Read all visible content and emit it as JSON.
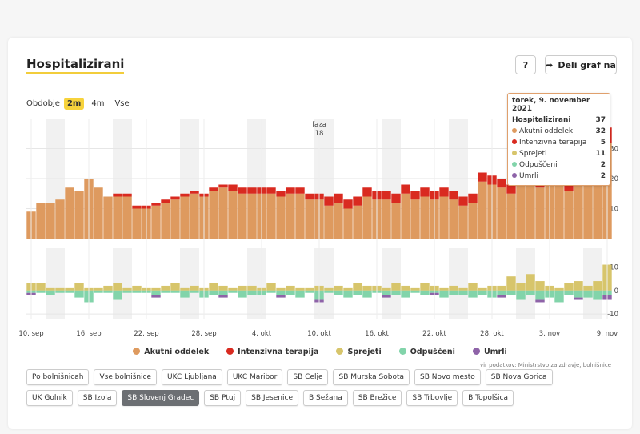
{
  "header": {
    "title": "Hospitalizirani",
    "help": "?",
    "share": "Deli graf na"
  },
  "period": {
    "label": "Obdobje",
    "options": [
      "2m",
      "4m",
      "Vse"
    ]
  },
  "chart_data": [
    {
      "type": "stacked-bar",
      "categories": [
        "10. sep",
        null,
        null,
        null,
        null,
        null,
        "16. sep",
        null,
        null,
        null,
        null,
        null,
        "22. sep",
        null,
        null,
        null,
        null,
        null,
        "28. sep",
        null,
        null,
        null,
        null,
        null,
        "4. okt",
        null,
        null,
        null,
        null,
        null,
        "10. okt",
        null,
        null,
        null,
        null,
        null,
        "16. okt",
        null,
        null,
        null,
        null,
        null,
        "22. okt",
        null,
        null,
        null,
        null,
        null,
        "28. okt",
        null,
        null,
        null,
        null,
        null,
        "3. nov",
        null,
        null,
        null,
        null,
        null,
        "9. nov"
      ],
      "series": [
        {
          "name": "Akutni oddelek",
          "color": "#de9a5f",
          "values": [
            9,
            12,
            12,
            13,
            17,
            16,
            20,
            17,
            14,
            14,
            14,
            10,
            10,
            11,
            12,
            13,
            14,
            15,
            14,
            16,
            17,
            16,
            15,
            15,
            15,
            15,
            14,
            15,
            15,
            13,
            13,
            11,
            12,
            10,
            11,
            14,
            13,
            13,
            12,
            15,
            13,
            14,
            13,
            14,
            13,
            11,
            12,
            19,
            18,
            17,
            15,
            18,
            18,
            17,
            19,
            18,
            16,
            18,
            21,
            23,
            32
          ]
        },
        {
          "name": "Intenzivna terapija",
          "color": "#d92a20",
          "values": [
            0,
            0,
            0,
            0,
            0,
            0,
            0,
            0,
            0,
            1,
            1,
            1,
            1,
            1,
            1,
            1,
            1,
            1,
            1,
            1,
            1,
            2,
            2,
            2,
            2,
            2,
            2,
            2,
            2,
            2,
            2,
            3,
            3,
            3,
            3,
            3,
            3,
            3,
            3,
            3,
            3,
            3,
            3,
            3,
            3,
            3,
            3,
            3,
            3,
            3,
            3,
            4,
            4,
            4,
            4,
            4,
            4,
            4,
            4,
            4,
            5
          ]
        }
      ],
      "ylim": [
        0,
        40
      ],
      "yticks": [
        10,
        20,
        30
      ],
      "grid": true,
      "annotations": [
        {
          "text": "faza",
          "value": "18",
          "x": "10. okt"
        }
      ]
    },
    {
      "type": "diverging-bar",
      "series": [
        {
          "name": "Sprejeti",
          "color": "#d7c56b",
          "values": [
            3,
            3,
            1,
            1,
            1,
            3,
            1,
            1,
            2,
            3,
            1,
            2,
            1,
            1,
            2,
            3,
            1,
            2,
            1,
            3,
            2,
            1,
            2,
            2,
            1,
            3,
            1,
            2,
            1,
            1,
            2,
            1,
            2,
            1,
            3,
            2,
            2,
            1,
            3,
            2,
            1,
            3,
            2,
            1,
            2,
            1,
            3,
            1,
            2,
            2,
            6,
            3,
            7,
            4,
            2,
            1,
            3,
            4,
            2,
            4,
            11
          ]
        },
        {
          "name": "Odpuščeni",
          "color": "#82d4aa",
          "values": [
            -1,
            -1,
            -2,
            -1,
            -1,
            -3,
            -5,
            -1,
            -1,
            -4,
            -1,
            -1,
            -1,
            -2,
            -1,
            -1,
            -3,
            -1,
            -3,
            -2,
            -2,
            -1,
            -3,
            -2,
            -2,
            -1,
            -2,
            -2,
            -3,
            -1,
            -4,
            -1,
            -2,
            -3,
            -2,
            -3,
            -1,
            -2,
            -2,
            -3,
            -1,
            -2,
            -1,
            -3,
            -2,
            -2,
            -3,
            -2,
            -3,
            -2,
            -2,
            -4,
            -2,
            -4,
            -3,
            -5,
            -2,
            -3,
            -3,
            -4,
            -2
          ]
        },
        {
          "name": "Umrli",
          "color": "#8e63a8",
          "values": [
            -1,
            0,
            0,
            0,
            0,
            0,
            0,
            0,
            0,
            0,
            0,
            0,
            0,
            -1,
            0,
            0,
            0,
            0,
            0,
            0,
            -1,
            0,
            0,
            0,
            0,
            0,
            -1,
            0,
            0,
            0,
            -1,
            0,
            0,
            0,
            0,
            0,
            0,
            -1,
            0,
            0,
            0,
            0,
            -1,
            0,
            0,
            0,
            0,
            0,
            0,
            -1,
            0,
            0,
            0,
            -1,
            0,
            0,
            0,
            -1,
            0,
            0,
            -2
          ]
        }
      ],
      "ylim": [
        -12,
        18
      ],
      "yticks": [
        -10,
        0,
        10
      ],
      "grid": true
    }
  ],
  "tooltip": {
    "title": "torek, 9. november 2021",
    "rows": [
      {
        "label": "Hospitalizirani",
        "value": "37"
      },
      {
        "label": "Akutni oddelek",
        "value": "32"
      },
      {
        "label": "Intenzivna terapija",
        "value": "5"
      },
      {
        "label": "Sprejeti",
        "value": "11"
      },
      {
        "label": "Odpuščeni",
        "value": "2"
      },
      {
        "label": "Umrli",
        "value": "2"
      }
    ]
  },
  "source": "vir podatkov: Ministrstvo za zdravje, bolnišnice",
  "hospitals": [
    "Po bolnišnicah",
    "Vse bolnišnice",
    "UKC Ljubljana",
    "UKC Maribor",
    "SB Celje",
    "SB Murska Sobota",
    "SB Novo mesto",
    "SB Nova Gorica",
    "UK Golnik",
    "SB Izola",
    "SB Slovenj Gradec",
    "SB Ptuj",
    "SB Jesenice",
    "B Sežana",
    "SB Brežice",
    "SB Trbovlje",
    "B Topolšica"
  ]
}
